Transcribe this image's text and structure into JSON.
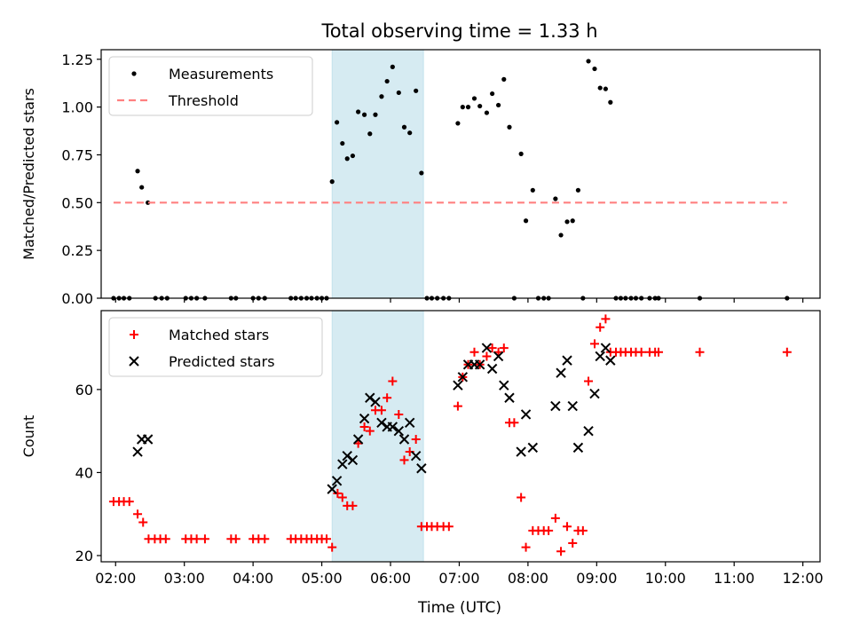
{
  "figure": {
    "title": "Total observing time = 1.33 h",
    "xlabel": "Time (UTC)"
  },
  "chart_data": [
    {
      "type": "scatter",
      "ylabel": "Matched/Predicted stars",
      "xlim": [
        1.79,
        12.25
      ],
      "ylim": [
        0,
        1.3
      ],
      "xticks": [
        "02:00",
        "03:00",
        "04:00",
        "05:00",
        "06:00",
        "07:00",
        "08:00",
        "09:00",
        "10:00",
        "11:00",
        "12:00"
      ],
      "yticks": [
        "0.00",
        "0.25",
        "0.50",
        "0.75",
        "1.00",
        "1.25"
      ],
      "ytick_values": [
        0,
        0.25,
        0.5,
        0.75,
        1.0,
        1.25
      ],
      "grid": false,
      "legend": "upper-left",
      "span": {
        "x0": 5.15,
        "x1": 6.48,
        "color": "#add8e6"
      },
      "series": [
        {
          "name": "Measurements",
          "marker": "dot",
          "color": "#000000",
          "points": [
            [
              1.97,
              0
            ],
            [
              2.05,
              0
            ],
            [
              2.12,
              0
            ],
            [
              2.2,
              0
            ],
            [
              2.32,
              0.665
            ],
            [
              2.38,
              0.58
            ],
            [
              2.47,
              0.5
            ],
            [
              2.58,
              0
            ],
            [
              2.67,
              0
            ],
            [
              2.75,
              0
            ],
            [
              3.02,
              0
            ],
            [
              3.1,
              0
            ],
            [
              3.18,
              0
            ],
            [
              3.3,
              0
            ],
            [
              3.68,
              0
            ],
            [
              3.75,
              0
            ],
            [
              4.0,
              0
            ],
            [
              4.08,
              0
            ],
            [
              4.17,
              0
            ],
            [
              4.55,
              0
            ],
            [
              4.62,
              0
            ],
            [
              4.7,
              0
            ],
            [
              4.78,
              0
            ],
            [
              4.85,
              0
            ],
            [
              4.93,
              0
            ],
            [
              5.0,
              0
            ],
            [
              5.07,
              0
            ],
            [
              5.15,
              0.61
            ],
            [
              5.22,
              0.92
            ],
            [
              5.3,
              0.81
            ],
            [
              5.37,
              0.73
            ],
            [
              5.45,
              0.745
            ],
            [
              5.53,
              0.975
            ],
            [
              5.62,
              0.96
            ],
            [
              5.7,
              0.86
            ],
            [
              5.78,
              0.96
            ],
            [
              5.87,
              1.055
            ],
            [
              5.95,
              1.135
            ],
            [
              6.03,
              1.21
            ],
            [
              6.12,
              1.075
            ],
            [
              6.2,
              0.895
            ],
            [
              6.28,
              0.865
            ],
            [
              6.37,
              1.085
            ],
            [
              6.45,
              0.655
            ],
            [
              6.53,
              0
            ],
            [
              6.6,
              0
            ],
            [
              6.68,
              0
            ],
            [
              6.77,
              0
            ],
            [
              6.85,
              0
            ],
            [
              6.98,
              0.915
            ],
            [
              7.05,
              1.0
            ],
            [
              7.13,
              1.0
            ],
            [
              7.22,
              1.045
            ],
            [
              7.3,
              1.005
            ],
            [
              7.4,
              0.97
            ],
            [
              7.48,
              1.07
            ],
            [
              7.57,
              1.01
            ],
            [
              7.65,
              1.145
            ],
            [
              7.73,
              0.895
            ],
            [
              7.8,
              0
            ],
            [
              7.9,
              0.755
            ],
            [
              7.97,
              0.405
            ],
            [
              8.07,
              0.565
            ],
            [
              8.15,
              0
            ],
            [
              8.23,
              0
            ],
            [
              8.3,
              0
            ],
            [
              8.4,
              0.52
            ],
            [
              8.48,
              0.33
            ],
            [
              8.57,
              0.4
            ],
            [
              8.65,
              0.405
            ],
            [
              8.73,
              0.565
            ],
            [
              8.8,
              0
            ],
            [
              8.88,
              1.24
            ],
            [
              8.97,
              1.2
            ],
            [
              9.05,
              1.1
            ],
            [
              9.13,
              1.095
            ],
            [
              9.2,
              1.025
            ],
            [
              9.28,
              0
            ],
            [
              9.35,
              0
            ],
            [
              9.42,
              0
            ],
            [
              9.5,
              0
            ],
            [
              9.57,
              0
            ],
            [
              9.65,
              0
            ],
            [
              9.77,
              0
            ],
            [
              9.85,
              0
            ],
            [
              9.9,
              0
            ],
            [
              10.5,
              0
            ],
            [
              11.77,
              0
            ]
          ]
        },
        {
          "name": "Threshold",
          "marker": "dashed-line",
          "color": "#ff8080",
          "points": [
            [
              1.97,
              0.5
            ],
            [
              11.77,
              0.5
            ]
          ]
        }
      ]
    },
    {
      "type": "scatter",
      "ylabel": "Count",
      "xlim": [
        1.79,
        12.25
      ],
      "ylim": [
        18.5,
        79
      ],
      "xticks": [
        "02:00",
        "03:00",
        "04:00",
        "05:00",
        "06:00",
        "07:00",
        "08:00",
        "09:00",
        "10:00",
        "11:00",
        "12:00"
      ],
      "xtick_values": [
        2,
        3,
        4,
        5,
        6,
        7,
        8,
        9,
        10,
        11,
        12
      ],
      "yticks": [
        "20",
        "40",
        "60"
      ],
      "ytick_values": [
        20,
        40,
        60
      ],
      "grid": false,
      "legend": "upper-left",
      "span": {
        "x0": 5.15,
        "x1": 6.48,
        "color": "#add8e6"
      },
      "series": [
        {
          "name": "Matched stars",
          "marker": "plus",
          "color": "#ff0000",
          "points": [
            [
              1.97,
              33
            ],
            [
              2.05,
              33
            ],
            [
              2.12,
              33
            ],
            [
              2.2,
              33
            ],
            [
              2.32,
              30
            ],
            [
              2.4,
              28
            ],
            [
              2.48,
              24
            ],
            [
              2.57,
              24
            ],
            [
              2.65,
              24
            ],
            [
              2.73,
              24
            ],
            [
              3.02,
              24
            ],
            [
              3.1,
              24
            ],
            [
              3.18,
              24
            ],
            [
              3.3,
              24
            ],
            [
              3.68,
              24
            ],
            [
              3.75,
              24
            ],
            [
              4.0,
              24
            ],
            [
              4.08,
              24
            ],
            [
              4.17,
              24
            ],
            [
              4.55,
              24
            ],
            [
              4.62,
              24
            ],
            [
              4.7,
              24
            ],
            [
              4.78,
              24
            ],
            [
              4.85,
              24
            ],
            [
              4.93,
              24
            ],
            [
              5.0,
              24
            ],
            [
              5.07,
              24
            ],
            [
              5.15,
              22
            ],
            [
              5.23,
              35
            ],
            [
              5.3,
              34
            ],
            [
              5.37,
              32
            ],
            [
              5.45,
              32
            ],
            [
              5.53,
              47
            ],
            [
              5.62,
              51
            ],
            [
              5.7,
              50
            ],
            [
              5.78,
              55
            ],
            [
              5.87,
              55
            ],
            [
              5.95,
              58
            ],
            [
              6.03,
              62
            ],
            [
              6.12,
              54
            ],
            [
              6.2,
              43
            ],
            [
              6.28,
              45
            ],
            [
              6.37,
              48
            ],
            [
              6.45,
              27
            ],
            [
              6.53,
              27
            ],
            [
              6.6,
              27
            ],
            [
              6.68,
              27
            ],
            [
              6.77,
              27
            ],
            [
              6.85,
              27
            ],
            [
              6.98,
              56
            ],
            [
              7.05,
              63
            ],
            [
              7.13,
              66
            ],
            [
              7.22,
              69
            ],
            [
              7.3,
              66
            ],
            [
              7.4,
              68
            ],
            [
              7.48,
              70
            ],
            [
              7.57,
              69
            ],
            [
              7.65,
              70
            ],
            [
              7.73,
              52
            ],
            [
              7.8,
              52
            ],
            [
              7.9,
              34
            ],
            [
              7.97,
              22
            ],
            [
              8.07,
              26
            ],
            [
              8.15,
              26
            ],
            [
              8.23,
              26
            ],
            [
              8.3,
              26
            ],
            [
              8.4,
              29
            ],
            [
              8.48,
              21
            ],
            [
              8.57,
              27
            ],
            [
              8.65,
              23
            ],
            [
              8.73,
              26
            ],
            [
              8.8,
              26
            ],
            [
              8.88,
              62
            ],
            [
              8.97,
              71
            ],
            [
              9.05,
              75
            ],
            [
              9.13,
              77
            ],
            [
              9.2,
              69
            ],
            [
              9.28,
              69
            ],
            [
              9.35,
              69
            ],
            [
              9.42,
              69
            ],
            [
              9.5,
              69
            ],
            [
              9.57,
              69
            ],
            [
              9.65,
              69
            ],
            [
              9.77,
              69
            ],
            [
              9.85,
              69
            ],
            [
              9.9,
              69
            ],
            [
              10.5,
              69
            ],
            [
              11.77,
              69
            ]
          ]
        },
        {
          "name": "Predicted stars",
          "marker": "x",
          "color": "#000000",
          "points": [
            [
              2.32,
              45
            ],
            [
              2.38,
              48
            ],
            [
              2.47,
              48
            ],
            [
              5.15,
              36
            ],
            [
              5.22,
              38
            ],
            [
              5.3,
              42
            ],
            [
              5.37,
              44
            ],
            [
              5.45,
              43
            ],
            [
              5.53,
              48
            ],
            [
              5.62,
              53
            ],
            [
              5.7,
              58
            ],
            [
              5.78,
              57
            ],
            [
              5.87,
              52
            ],
            [
              5.95,
              51
            ],
            [
              6.03,
              51
            ],
            [
              6.12,
              50
            ],
            [
              6.2,
              48
            ],
            [
              6.28,
              52
            ],
            [
              6.37,
              44
            ],
            [
              6.45,
              41
            ],
            [
              6.98,
              61
            ],
            [
              7.05,
              63
            ],
            [
              7.13,
              66
            ],
            [
              7.22,
              66
            ],
            [
              7.3,
              66
            ],
            [
              7.4,
              70
            ],
            [
              7.48,
              65
            ],
            [
              7.57,
              68
            ],
            [
              7.65,
              61
            ],
            [
              7.73,
              58
            ],
            [
              7.9,
              45
            ],
            [
              7.97,
              54
            ],
            [
              8.07,
              46
            ],
            [
              8.4,
              56
            ],
            [
              8.48,
              64
            ],
            [
              8.57,
              67
            ],
            [
              8.65,
              56
            ],
            [
              8.73,
              46
            ],
            [
              8.88,
              50
            ],
            [
              8.97,
              59
            ],
            [
              9.05,
              68
            ],
            [
              9.13,
              70
            ],
            [
              9.2,
              67
            ]
          ]
        }
      ]
    }
  ]
}
